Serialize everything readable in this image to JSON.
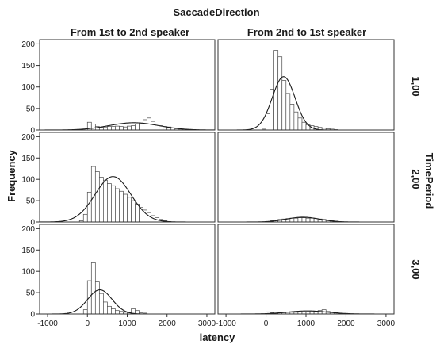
{
  "chart_data": {
    "type": "bar",
    "title": "SaccadeDirection",
    "xlabel": "latency",
    "ylabel": "Frequency",
    "row_label": "TimePeriod",
    "columns": [
      "From 1st to 2nd speaker",
      "From 2nd to 1st speaker"
    ],
    "rows": [
      "1,00",
      "2,00",
      "3,00"
    ],
    "xlim": [
      -1200,
      3200
    ],
    "ylim": [
      0,
      210
    ],
    "x_ticks": [
      -1000,
      0,
      1000,
      2000,
      3000
    ],
    "y_ticks": [
      0,
      50,
      100,
      150,
      200
    ],
    "bin_width": 100,
    "panels": [
      {
        "row": "1,00",
        "column": "From 1st to 2nd speaker",
        "normal_fit": true,
        "bins": [
          [
            -100,
            0
          ],
          [
            0,
            18
          ],
          [
            100,
            14
          ],
          [
            200,
            8
          ],
          [
            300,
            6
          ],
          [
            400,
            7
          ],
          [
            500,
            8
          ],
          [
            600,
            8
          ],
          [
            700,
            9
          ],
          [
            800,
            8
          ],
          [
            900,
            7
          ],
          [
            1000,
            9
          ],
          [
            1100,
            10
          ],
          [
            1200,
            14
          ],
          [
            1300,
            16
          ],
          [
            1400,
            24
          ],
          [
            1500,
            28
          ],
          [
            1600,
            20
          ],
          [
            1700,
            14
          ],
          [
            1800,
            10
          ],
          [
            1900,
            8
          ],
          [
            2000,
            7
          ],
          [
            2100,
            5
          ],
          [
            2200,
            3
          ],
          [
            2300,
            2
          ]
        ]
      },
      {
        "row": "1,00",
        "column": "From 2nd to 1st speaker",
        "normal_fit": true,
        "bins": [
          [
            -100,
            2
          ],
          [
            0,
            38
          ],
          [
            100,
            95
          ],
          [
            200,
            185
          ],
          [
            300,
            170
          ],
          [
            400,
            115
          ],
          [
            500,
            85
          ],
          [
            600,
            60
          ],
          [
            700,
            42
          ],
          [
            800,
            28
          ],
          [
            900,
            18
          ],
          [
            1000,
            12
          ],
          [
            1100,
            10
          ],
          [
            1200,
            8
          ],
          [
            1300,
            6
          ],
          [
            1400,
            4
          ],
          [
            1500,
            3
          ],
          [
            1600,
            2
          ],
          [
            1700,
            1
          ]
        ]
      },
      {
        "row": "2,00",
        "column": "From 1st to 2nd speaker",
        "normal_fit": true,
        "bins": [
          [
            -200,
            3
          ],
          [
            -100,
            18
          ],
          [
            0,
            70
          ],
          [
            100,
            130
          ],
          [
            200,
            118
          ],
          [
            300,
            105
          ],
          [
            400,
            98
          ],
          [
            500,
            90
          ],
          [
            600,
            85
          ],
          [
            700,
            78
          ],
          [
            800,
            72
          ],
          [
            900,
            65
          ],
          [
            1000,
            58
          ],
          [
            1100,
            50
          ],
          [
            1200,
            42
          ],
          [
            1300,
            34
          ],
          [
            1400,
            28
          ],
          [
            1500,
            22
          ],
          [
            1600,
            15
          ],
          [
            1700,
            10
          ],
          [
            1800,
            6
          ],
          [
            1900,
            3
          ],
          [
            2000,
            1
          ]
        ]
      },
      {
        "row": "2,00",
        "column": "From 2nd to 1st speaker",
        "normal_fit": true,
        "bins": [
          [
            100,
            3
          ],
          [
            200,
            4
          ],
          [
            300,
            6
          ],
          [
            400,
            7
          ],
          [
            500,
            8
          ],
          [
            600,
            9
          ],
          [
            700,
            9
          ],
          [
            800,
            10
          ],
          [
            900,
            10
          ],
          [
            1000,
            9
          ],
          [
            1100,
            9
          ],
          [
            1200,
            8
          ],
          [
            1300,
            7
          ],
          [
            1400,
            6
          ],
          [
            1500,
            4
          ],
          [
            1600,
            3
          ],
          [
            1700,
            2
          ],
          [
            1800,
            1
          ]
        ]
      },
      {
        "row": "3,00",
        "column": "From 1st to 2nd speaker",
        "normal_fit": true,
        "bins": [
          [
            -100,
            10
          ],
          [
            0,
            78
          ],
          [
            100,
            120
          ],
          [
            200,
            75
          ],
          [
            300,
            48
          ],
          [
            400,
            28
          ],
          [
            500,
            18
          ],
          [
            600,
            12
          ],
          [
            700,
            8
          ],
          [
            800,
            6
          ],
          [
            900,
            4
          ],
          [
            1000,
            3
          ],
          [
            1100,
            12
          ],
          [
            1200,
            8
          ],
          [
            1300,
            3
          ],
          [
            1400,
            2
          ]
        ]
      },
      {
        "row": "3,00",
        "column": "From 2nd to 1st speaker",
        "normal_fit": true,
        "bins": [
          [
            0,
            5
          ],
          [
            100,
            3
          ],
          [
            200,
            2
          ],
          [
            300,
            3
          ],
          [
            400,
            3
          ],
          [
            500,
            4
          ],
          [
            600,
            4
          ],
          [
            700,
            4
          ],
          [
            800,
            5
          ],
          [
            900,
            5
          ],
          [
            1000,
            5
          ],
          [
            1100,
            7
          ],
          [
            1200,
            6
          ],
          [
            1300,
            8
          ],
          [
            1400,
            10
          ],
          [
            1500,
            6
          ],
          [
            1600,
            4
          ],
          [
            1700,
            3
          ],
          [
            1800,
            2
          ],
          [
            1900,
            1
          ]
        ]
      }
    ]
  }
}
